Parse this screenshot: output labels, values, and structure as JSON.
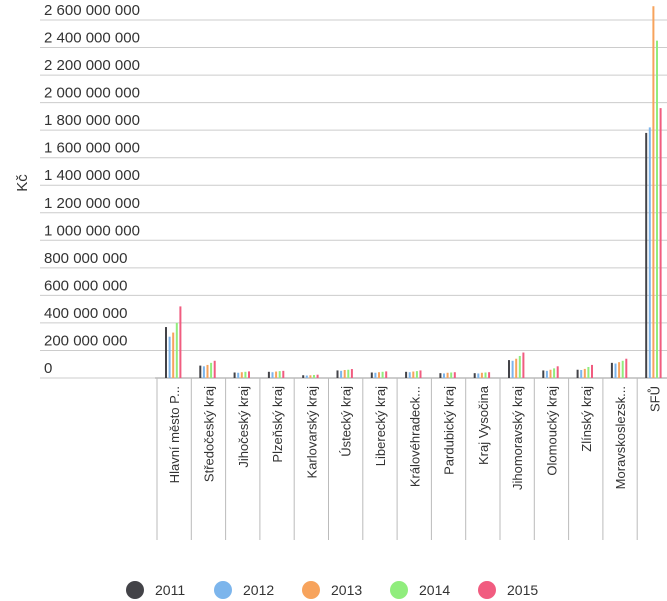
{
  "chart_data": {
    "type": "bar",
    "ylabel": "Kč",
    "ylim": [
      0,
      2600000000
    ],
    "yticks": [
      0,
      200000000,
      400000000,
      600000000,
      800000000,
      1000000000,
      1200000000,
      1400000000,
      1600000000,
      1800000000,
      2000000000,
      2200000000,
      2400000000,
      2600000000
    ],
    "ytick_labels": [
      "0",
      "200 000 000",
      "400 000 000",
      "600 000 000",
      "800 000 000",
      "1 000 000 000",
      "1 200 000 000",
      "1 400 000 000",
      "1 600 000 000",
      "1 800 000 000",
      "2 000 000 000",
      "2 200 000 000",
      "2 400 000 000",
      "2 600 000 000"
    ],
    "grid": true,
    "legend_position": "bottom",
    "categories": [
      "Hlavní město P...",
      "Středočeský kraj",
      "Jihočeský kraj",
      "Plzeňský kraj",
      "Karlovarský kraj",
      "Ústecký kraj",
      "Liberecký kraj",
      "Královéhradeck...",
      "Pardubický kraj",
      "Kraj Vysočina",
      "Jihomoravský kraj",
      "Olomoucký kraj",
      "Zlínský kraj",
      "Moravskoslezsk...",
      "SFŮ"
    ],
    "series": [
      {
        "name": "2011",
        "color": "#434348",
        "values": [
          370000000,
          90000000,
          40000000,
          45000000,
          20000000,
          55000000,
          40000000,
          45000000,
          35000000,
          35000000,
          130000000,
          55000000,
          60000000,
          110000000,
          1780000000
        ]
      },
      {
        "name": "2012",
        "color": "#7cb5ec",
        "values": [
          300000000,
          85000000,
          38000000,
          42000000,
          18000000,
          52000000,
          38000000,
          42000000,
          33000000,
          33000000,
          125000000,
          52000000,
          58000000,
          105000000,
          1820000000
        ]
      },
      {
        "name": "2013",
        "color": "#f7a35c",
        "values": [
          330000000,
          95000000,
          42000000,
          47000000,
          20000000,
          58000000,
          42000000,
          47000000,
          38000000,
          38000000,
          140000000,
          60000000,
          66000000,
          115000000,
          2700000000
        ]
      },
      {
        "name": "2014",
        "color": "#90ed7d",
        "values": [
          400000000,
          110000000,
          45000000,
          50000000,
          22000000,
          60000000,
          45000000,
          50000000,
          40000000,
          40000000,
          160000000,
          70000000,
          80000000,
          125000000,
          2450000000
        ]
      },
      {
        "name": "2015",
        "color": "#f15c80",
        "values": [
          520000000,
          125000000,
          48000000,
          52000000,
          24000000,
          65000000,
          48000000,
          55000000,
          42000000,
          42000000,
          185000000,
          85000000,
          95000000,
          140000000,
          1960000000
        ]
      }
    ]
  }
}
